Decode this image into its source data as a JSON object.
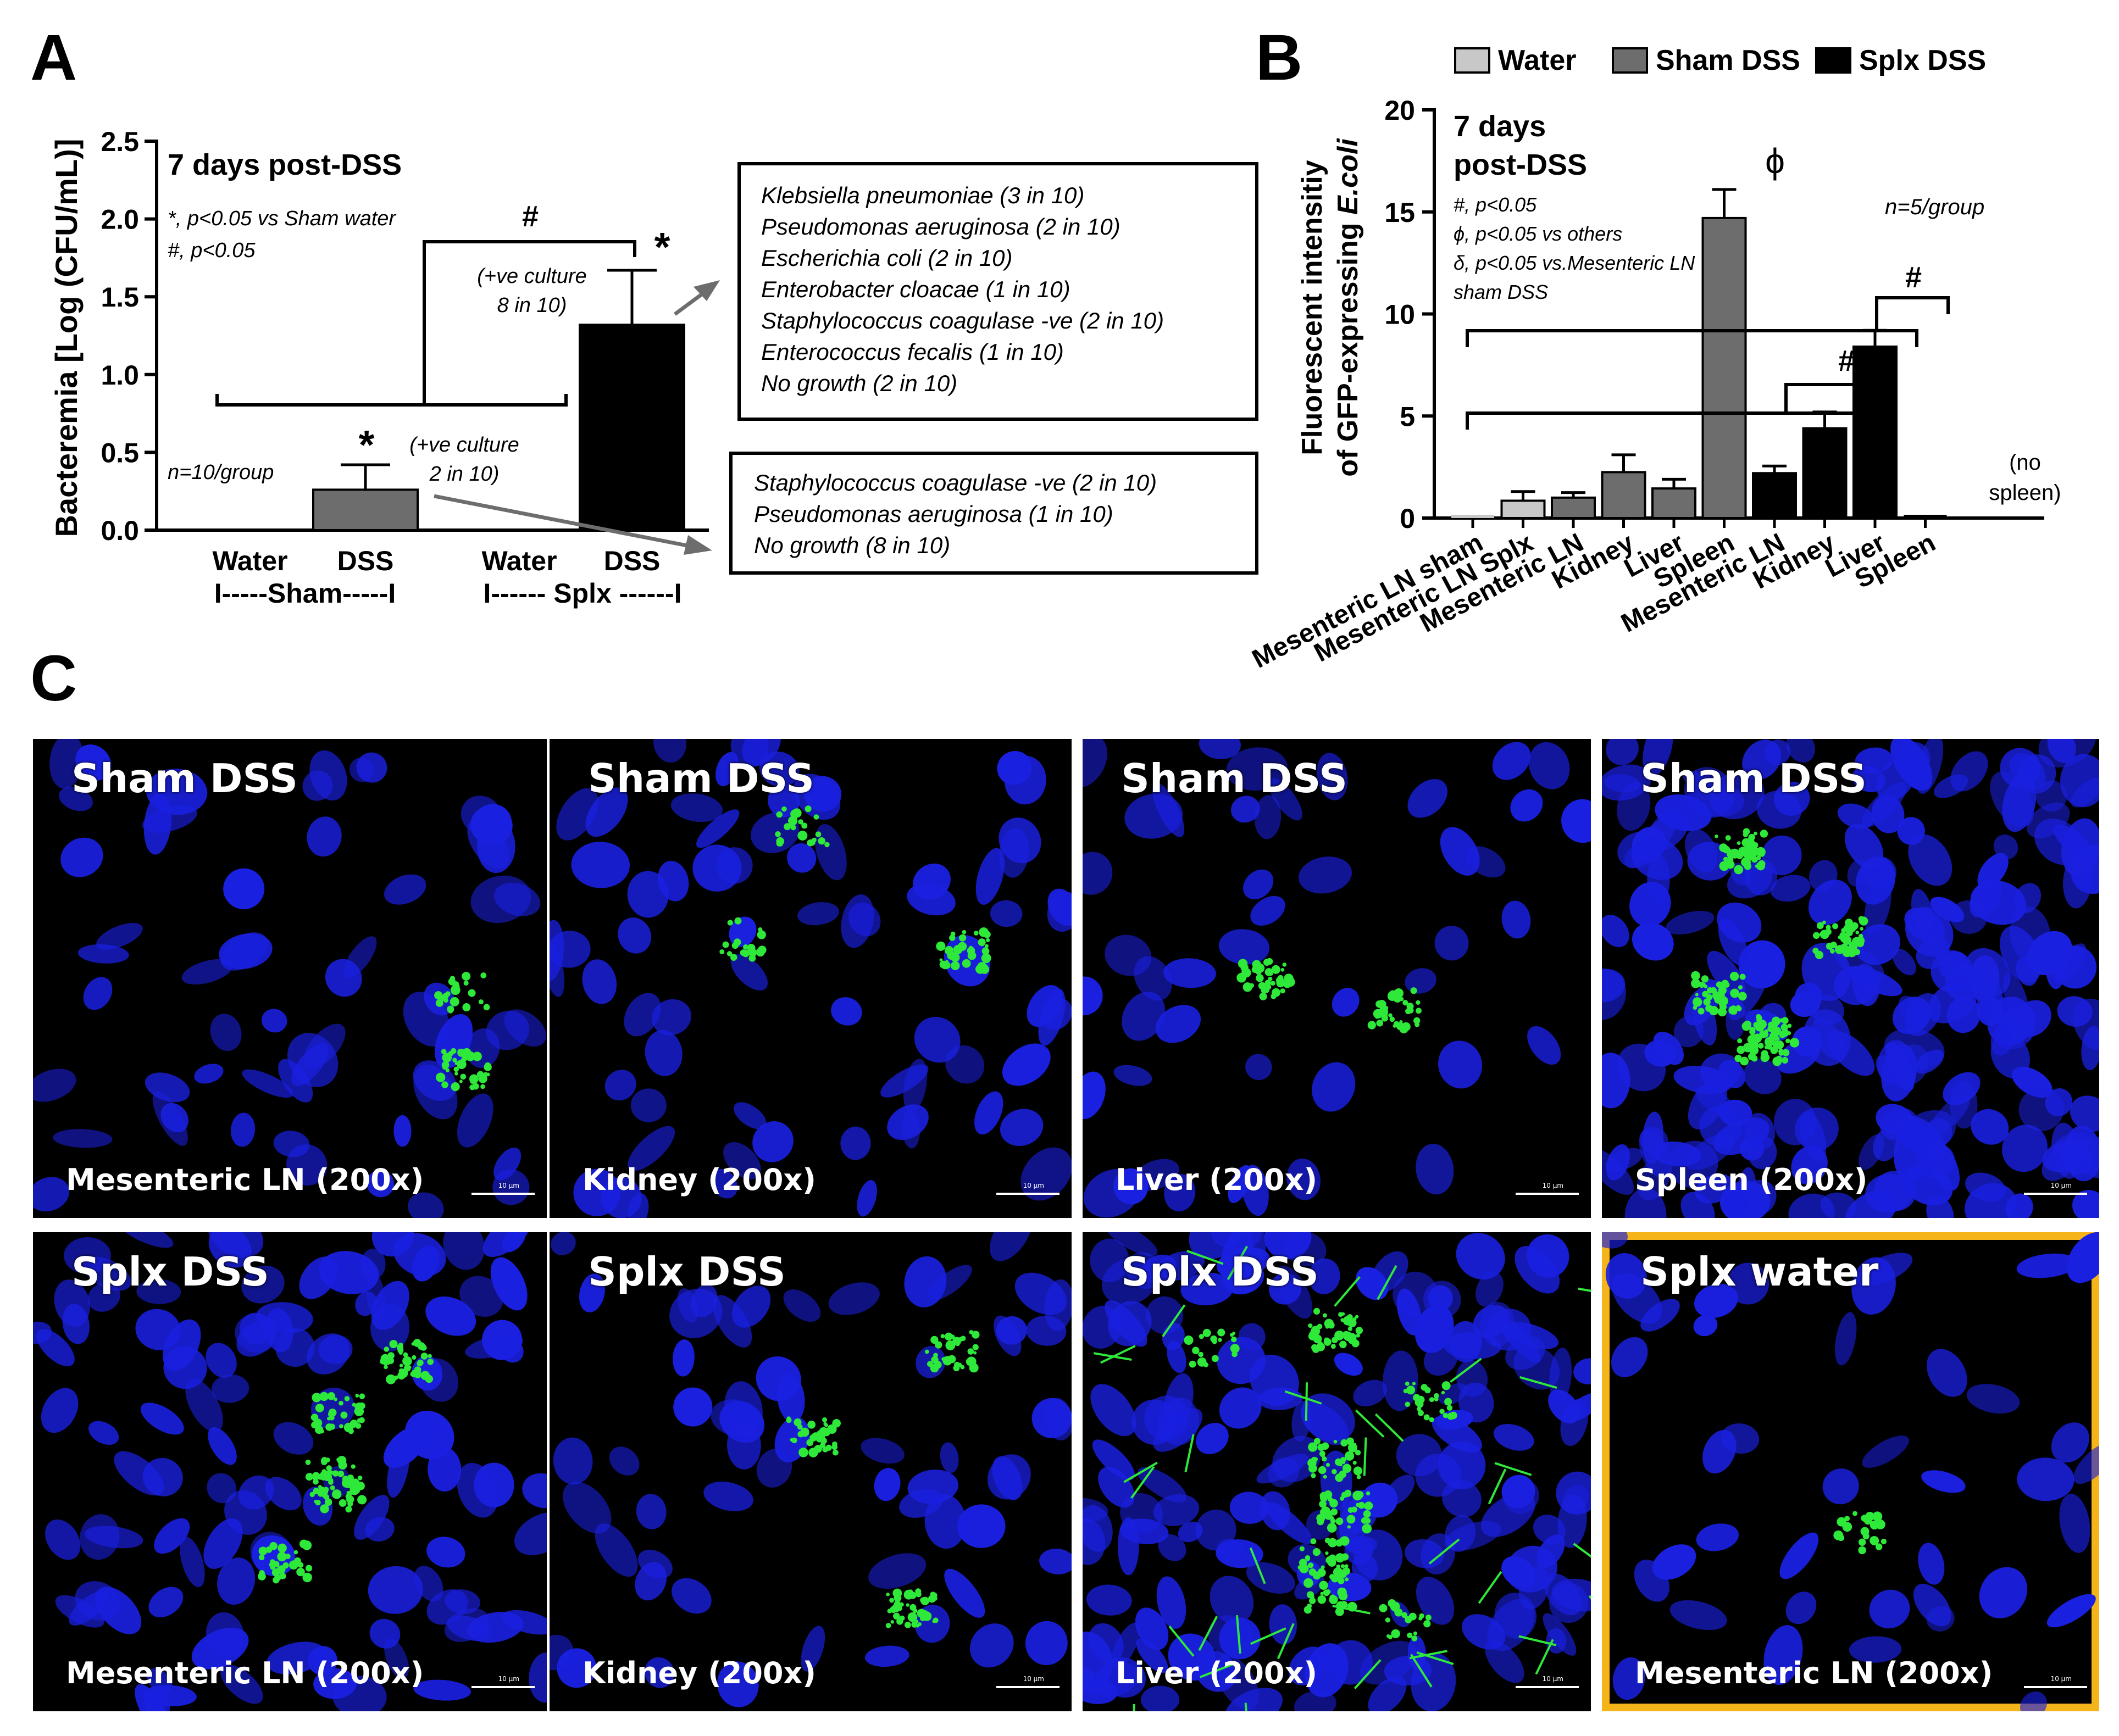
{
  "panel_labels": {
    "a": "A",
    "b": "B",
    "c": "C"
  },
  "chart_data": [
    {
      "type": "bar",
      "panel": "A",
      "ylabel": "Bacteremia [Log (CFU/mL)]",
      "ylim": [
        0,
        2.5
      ],
      "yticks": [
        "0.0",
        "0.5",
        "1.0",
        "1.5",
        "2.0",
        "2.5"
      ],
      "categories": [
        "Water",
        "DSS",
        "Water",
        "DSS"
      ],
      "group_labels": [
        "I-----Sham-----I",
        "I------ Splx ------I"
      ],
      "values": [
        0,
        0.26,
        0,
        1.32
      ],
      "errors": [
        0,
        0.16,
        0,
        0.35
      ],
      "bar_colors": [
        "#6d6d6d",
        "#6d6d6d",
        "#000000",
        "#000000"
      ],
      "annotations": {
        "timepoint": "7 days post-DSS",
        "stats_line1": "*, p<0.05 vs Sham water",
        "stats_line2": "#, p<0.05",
        "n": "n=10/group",
        "star": "*",
        "hash": "#",
        "culture_sham_1": "(+ve culture",
        "culture_sham_2": "2 in 10)",
        "culture_splx_1": "(+ve culture",
        "culture_splx_2": "8 in 10)"
      },
      "culture_box_splx": [
        {
          "name": "Klebsiella pneumoniae",
          "count": "(3 in 10)"
        },
        {
          "name": "Pseudomonas aeruginosa",
          "count": "(2 in 10)"
        },
        {
          "name": "Escherichia coli",
          "count": "(2 in 10)"
        },
        {
          "name": "Enterobacter cloacae",
          "count": "(1 in 10)"
        },
        {
          "name": "Staphylococcus coagulase",
          "count": "-ve (2 in 10)"
        },
        {
          "name": "Enterococcus fecalis",
          "count": "(1 in 10)"
        },
        {
          "name": "No growth",
          "count": "(2 in 10)"
        }
      ],
      "culture_box_sham": [
        {
          "name": "Staphylococcus coagulase",
          "count": "-ve (2 in 10)"
        },
        {
          "name": "Pseudomonas aeruginosa",
          "count": "(1 in 10)"
        },
        {
          "name": "No growth",
          "count": "(8 in 10)"
        }
      ]
    },
    {
      "type": "bar",
      "panel": "B",
      "ylabel_line1": "Fluorescent intensitiy",
      "ylabel_line2": "of GFP-expressing",
      "ylabel_italic": "E.coli",
      "ylim": [
        0,
        20
      ],
      "yticks": [
        "0",
        "5",
        "10",
        "15",
        "20"
      ],
      "legend": [
        {
          "name": "Water",
          "color": "#c8c8c8"
        },
        {
          "name": "Sham DSS",
          "color": "#6d6d6d"
        },
        {
          "name": "Splx DSS",
          "color": "#000000"
        }
      ],
      "categories": [
        "Mesenteric LN sham",
        "Mesenteric LN Splx",
        "Mesenteric LN",
        "Kidney",
        "Liver",
        "Spleen",
        "Mesenteric LN",
        "Kidney",
        "Liver",
        "Spleen"
      ],
      "values": [
        0,
        0.85,
        1.0,
        2.25,
        1.45,
        14.7,
        2.2,
        4.4,
        8.4,
        0
      ],
      "errors": [
        0,
        0.45,
        0.25,
        0.85,
        0.45,
        1.4,
        0.35,
        0.8,
        0.8,
        0
      ],
      "bar_colors": [
        "#c8c8c8",
        "#c8c8c8",
        "#6d6d6d",
        "#6d6d6d",
        "#6d6d6d",
        "#6d6d6d",
        "#000000",
        "#000000",
        "#000000",
        "#000000"
      ],
      "annotations": {
        "timepoint_1": "7 days",
        "timepoint_2": "post-DSS",
        "stats_hash": "#, p<0.05",
        "stats_phi": "ϕ, p<0.05 vs others",
        "stats_delta_1": "δ, p<0.05 vs.Mesenteric LN",
        "stats_delta_2": "sham DSS",
        "n": "n=5/group",
        "phi": "ϕ",
        "delta": "δ",
        "hash": "#",
        "no_spleen_1": "(no",
        "no_spleen_2": "spleen)"
      }
    }
  ],
  "micrographs": [
    {
      "title": "Sham DSS",
      "label": "Mesenteric LN (200x)",
      "scale": "10 µm"
    },
    {
      "title": "Sham DSS",
      "label": "Kidney (200x)",
      "scale": "10 µm"
    },
    {
      "title": "Sham DSS",
      "label": "Liver (200x)",
      "scale": "10 µm"
    },
    {
      "title": "Sham DSS",
      "label": "Spleen (200x)",
      "scale": "10 µm"
    },
    {
      "title": "Splx DSS",
      "label": "Mesenteric LN (200x)",
      "scale": "10 µm"
    },
    {
      "title": "Splx DSS",
      "label": "Kidney (200x)",
      "scale": "10 µm"
    },
    {
      "title": "Splx DSS",
      "label": "Liver (200x)",
      "scale": "10 µm"
    },
    {
      "title": "Splx water",
      "label": "Mesenteric LN (200x)",
      "scale": "10 µm"
    }
  ],
  "colors": {
    "nuclei": "#1a20e0",
    "gfp": "#2ee83a",
    "highlight_border": "#f4b41a"
  }
}
